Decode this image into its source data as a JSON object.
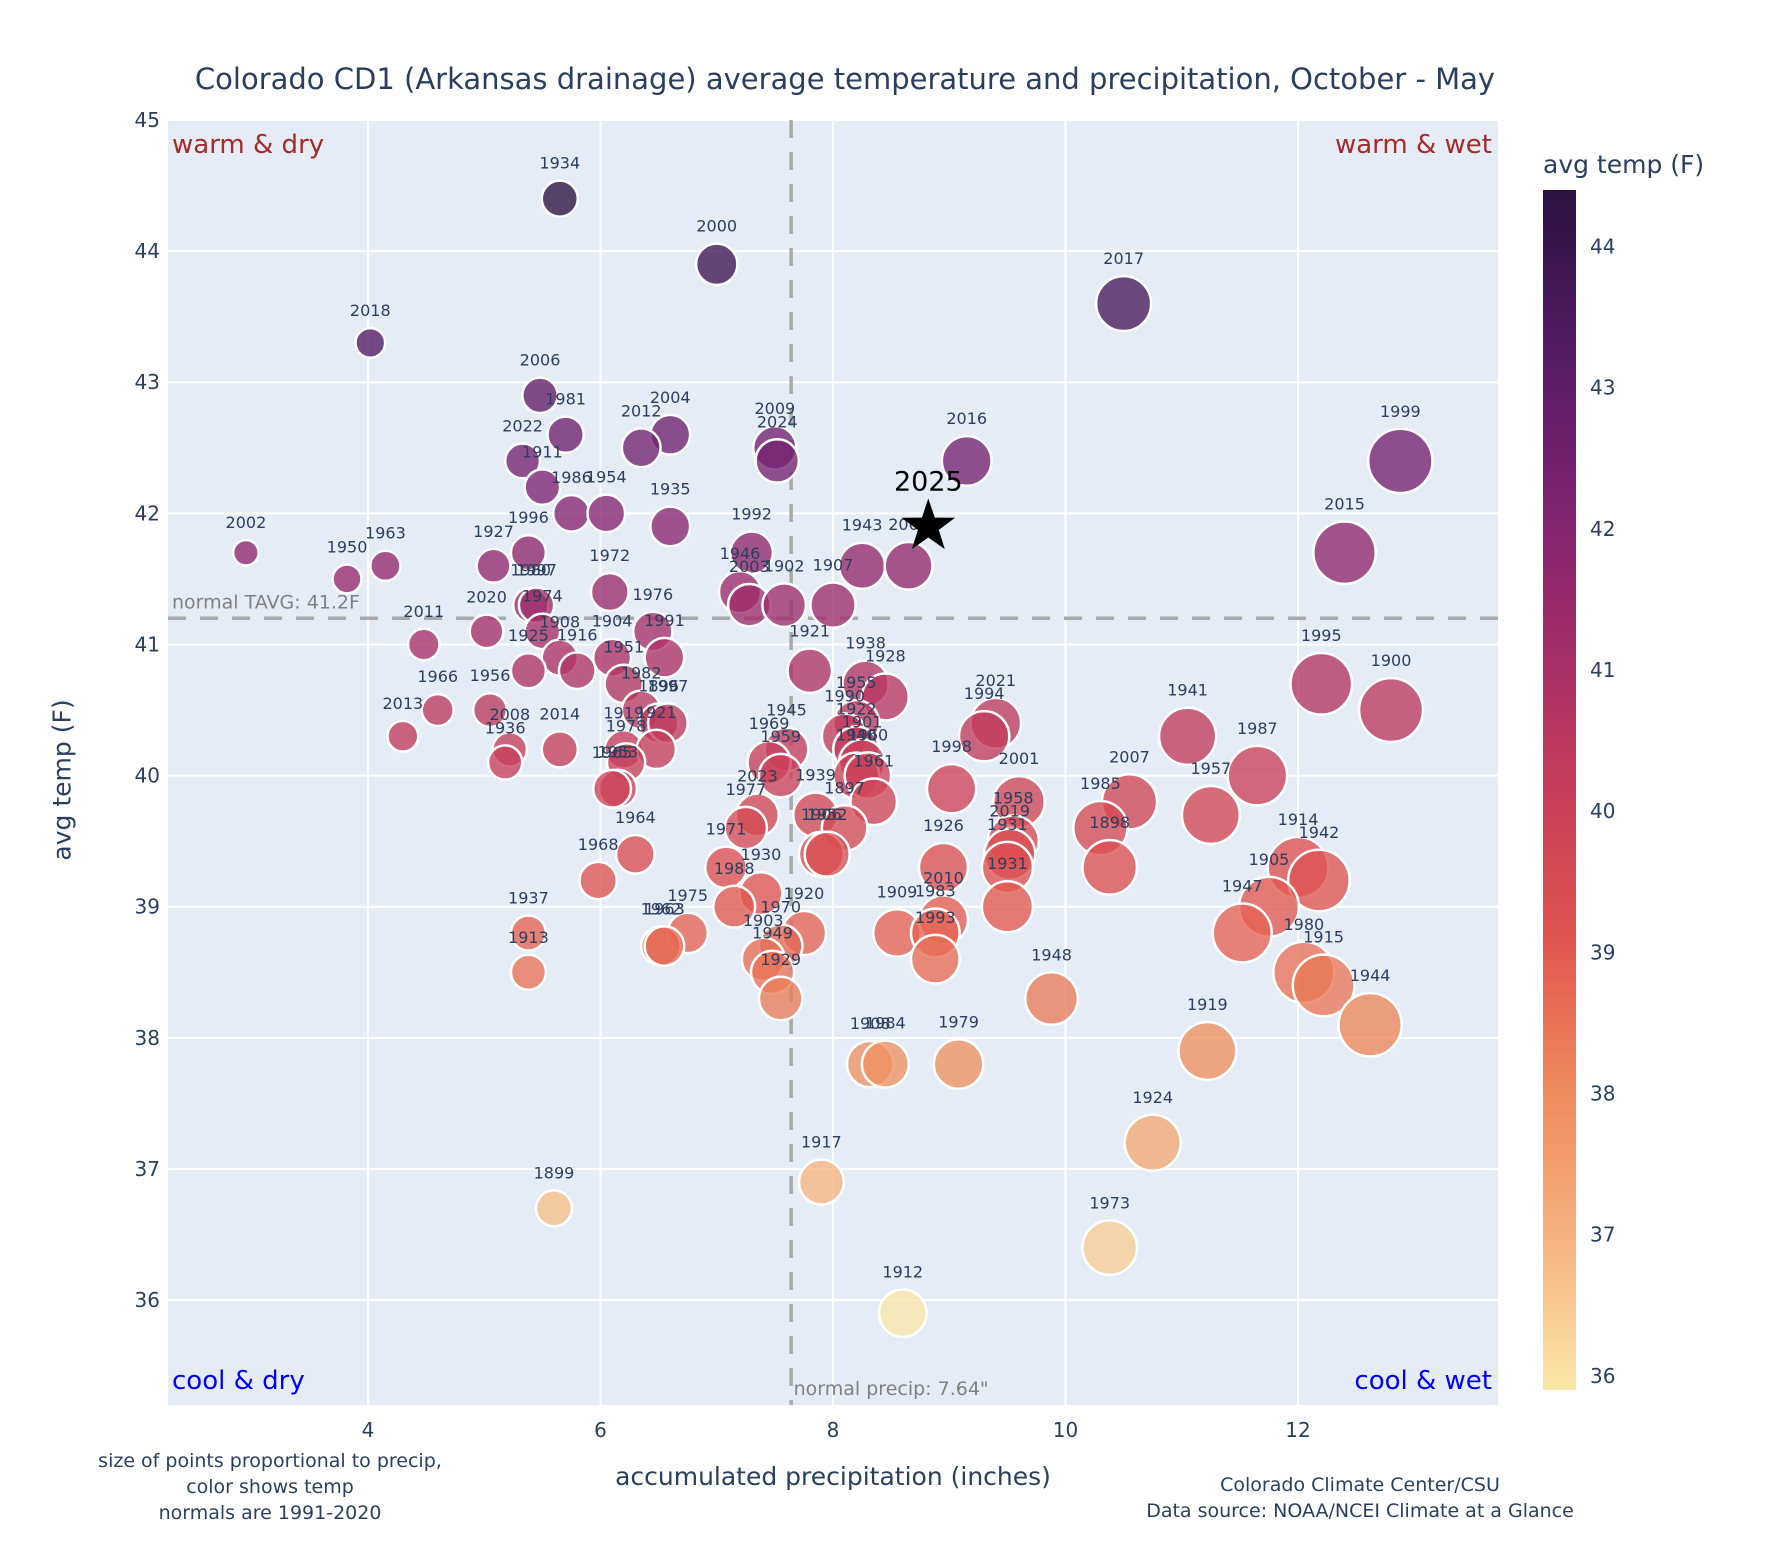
{
  "chart_data": {
    "type": "scatter",
    "title": "Colorado CD1 (Arkansas drainage) average temperature and precipitation, October - May",
    "xlabel": "accumulated precipitation (inches)",
    "ylabel": "avg temp (F)",
    "xlim": [
      2.28,
      13.72
    ],
    "ylim": [
      35.2,
      45.0
    ],
    "xticks": [
      4,
      6,
      8,
      10,
      12
    ],
    "yticks": [
      36,
      37,
      38,
      39,
      40,
      41,
      42,
      43,
      44,
      45
    ],
    "grid": true,
    "colorbar": {
      "title": "avg temp (F)",
      "range": [
        35.9,
        44.4
      ],
      "ticks": [
        36,
        37,
        38,
        39,
        40,
        41,
        42,
        43,
        44
      ],
      "colorscale": [
        "#fbe7a9",
        "#f6b27d",
        "#ef8a5b",
        "#e1554f",
        "#c73e5a",
        "#a22c6a",
        "#7b2271",
        "#511b62",
        "#2c1240"
      ]
    },
    "reference_lines": {
      "normal_temp": {
        "value": 41.2,
        "label": "normal TAVG: 41.2F"
      },
      "normal_precip": {
        "value": 7.64,
        "label": "normal precip: 7.64\""
      }
    },
    "quadrant_labels": {
      "top_left": {
        "text": "warm & dry",
        "color": "#a52a2a"
      },
      "top_right": {
        "text": "warm & wet",
        "color": "#a52a2a"
      },
      "bottom_left": {
        "text": "cool & dry",
        "color": "#0000ff"
      },
      "bottom_right": {
        "text": "cool & wet",
        "color": "#0000ff"
      }
    },
    "highlight": {
      "year": "2025",
      "precip": 8.82,
      "temp": 41.9,
      "marker": "star"
    },
    "points": [
      {
        "year": "1934",
        "precip": 5.65,
        "temp": 44.4
      },
      {
        "year": "2000",
        "precip": 7.0,
        "temp": 43.9
      },
      {
        "year": "2017",
        "precip": 10.5,
        "temp": 43.6
      },
      {
        "year": "2018",
        "precip": 4.02,
        "temp": 43.3
      },
      {
        "year": "2006",
        "precip": 5.48,
        "temp": 42.9
      },
      {
        "year": "1981",
        "precip": 5.7,
        "temp": 42.6
      },
      {
        "year": "2004",
        "precip": 6.6,
        "temp": 42.6
      },
      {
        "year": "2012",
        "precip": 6.35,
        "temp": 42.5
      },
      {
        "year": "2009",
        "precip": 7.5,
        "temp": 42.5
      },
      {
        "year": "2024",
        "precip": 7.52,
        "temp": 42.4
      },
      {
        "year": "2022",
        "precip": 5.33,
        "temp": 42.4
      },
      {
        "year": "1999",
        "precip": 12.88,
        "temp": 42.4
      },
      {
        "year": "2016",
        "precip": 9.15,
        "temp": 42.4
      },
      {
        "year": "1911",
        "precip": 5.5,
        "temp": 42.2
      },
      {
        "year": "1986",
        "precip": 5.75,
        "temp": 42.0
      },
      {
        "year": "1954",
        "precip": 6.05,
        "temp": 42.0
      },
      {
        "year": "1935",
        "precip": 6.6,
        "temp": 41.9
      },
      {
        "year": "2002",
        "precip": 2.95,
        "temp": 41.7
      },
      {
        "year": "1996",
        "precip": 5.38,
        "temp": 41.7
      },
      {
        "year": "1992",
        "precip": 7.3,
        "temp": 41.7
      },
      {
        "year": "2015",
        "precip": 12.4,
        "temp": 41.7
      },
      {
        "year": "1963",
        "precip": 4.15,
        "temp": 41.6
      },
      {
        "year": "1927",
        "precip": 5.08,
        "temp": 41.6
      },
      {
        "year": "1943",
        "precip": 8.25,
        "temp": 41.6
      },
      {
        "year": "2005",
        "precip": 8.65,
        "temp": 41.6
      },
      {
        "year": "1950",
        "precip": 3.82,
        "temp": 41.5
      },
      {
        "year": "1972",
        "precip": 6.08,
        "temp": 41.4
      },
      {
        "year": "1946",
        "precip": 7.2,
        "temp": 41.4
      },
      {
        "year": "1980s",
        "precip": 5.4,
        "temp": 41.3
      },
      {
        "year": "1997",
        "precip": 5.45,
        "temp": 41.3
      },
      {
        "year": "2003",
        "precip": 7.28,
        "temp": 41.3
      },
      {
        "year": "1902",
        "precip": 7.58,
        "temp": 41.3
      },
      {
        "year": "1907",
        "precip": 8.0,
        "temp": 41.3
      },
      {
        "year": "2020",
        "precip": 5.02,
        "temp": 41.1
      },
      {
        "year": "1974",
        "precip": 5.5,
        "temp": 41.1
      },
      {
        "year": "1976",
        "precip": 6.45,
        "temp": 41.1
      },
      {
        "year": "2011",
        "precip": 4.48,
        "temp": 41.0
      },
      {
        "year": "1908",
        "precip": 5.65,
        "temp": 40.9
      },
      {
        "year": "1904",
        "precip": 6.1,
        "temp": 40.9
      },
      {
        "year": "1991",
        "precip": 6.55,
        "temp": 40.9
      },
      {
        "year": "1925",
        "precip": 5.38,
        "temp": 40.8
      },
      {
        "year": "1916",
        "precip": 5.8,
        "temp": 40.8
      },
      {
        "year": "1921",
        "precip": 7.8,
        "temp": 40.8
      },
      {
        "year": "1951",
        "precip": 6.2,
        "temp": 40.7
      },
      {
        "year": "1938",
        "precip": 8.28,
        "temp": 40.7
      },
      {
        "year": "1995",
        "precip": 12.2,
        "temp": 40.7
      },
      {
        "year": "1928",
        "precip": 8.45,
        "temp": 40.6
      },
      {
        "year": "1982",
        "precip": 6.35,
        "temp": 40.5
      },
      {
        "year": "1966",
        "precip": 4.6,
        "temp": 40.5
      },
      {
        "year": "1956",
        "precip": 5.05,
        "temp": 40.5
      },
      {
        "year": "1900",
        "precip": 12.8,
        "temp": 40.5
      },
      {
        "year": "1896",
        "precip": 6.5,
        "temp": 40.4
      },
      {
        "year": "1955",
        "precip": 8.2,
        "temp": 40.4
      },
      {
        "year": "2021",
        "precip": 9.4,
        "temp": 40.4
      },
      {
        "year": "1990",
        "precip": 8.1,
        "temp": 40.3
      },
      {
        "year": "1994",
        "precip": 9.3,
        "temp": 40.3
      },
      {
        "year": "2013",
        "precip": 4.3,
        "temp": 40.3
      },
      {
        "year": "1941",
        "precip": 11.05,
        "temp": 40.3
      },
      {
        "year": "1997b",
        "precip": 6.58,
        "temp": 40.4
      },
      {
        "year": "2008",
        "precip": 5.22,
        "temp": 40.2
      },
      {
        "year": "2014",
        "precip": 5.65,
        "temp": 40.2
      },
      {
        "year": "1919",
        "precip": 6.2,
        "temp": 40.2
      },
      {
        "year": "1921b",
        "precip": 6.48,
        "temp": 40.2
      },
      {
        "year": "1922",
        "precip": 8.2,
        "temp": 40.2
      },
      {
        "year": "1945",
        "precip": 7.6,
        "temp": 40.2
      },
      {
        "year": "1936",
        "precip": 5.18,
        "temp": 40.1
      },
      {
        "year": "1978",
        "precip": 6.22,
        "temp": 40.1
      },
      {
        "year": "1969",
        "precip": 7.45,
        "temp": 40.1
      },
      {
        "year": "1959",
        "precip": 7.55,
        "temp": 40.0
      },
      {
        "year": "1901",
        "precip": 8.25,
        "temp": 40.1
      },
      {
        "year": "1940",
        "precip": 8.2,
        "temp": 40.0
      },
      {
        "year": "1960",
        "precip": 8.3,
        "temp": 40.0
      },
      {
        "year": "1987",
        "precip": 11.65,
        "temp": 40.0
      },
      {
        "year": "1953",
        "precip": 6.15,
        "temp": 39.9
      },
      {
        "year": "1965",
        "precip": 6.1,
        "temp": 39.9
      },
      {
        "year": "1998",
        "precip": 9.02,
        "temp": 39.9
      },
      {
        "year": "1961",
        "precip": 8.35,
        "temp": 39.8
      },
      {
        "year": "2001",
        "precip": 9.6,
        "temp": 39.8
      },
      {
        "year": "2007",
        "precip": 10.55,
        "temp": 39.8
      },
      {
        "year": "2023",
        "precip": 7.35,
        "temp": 39.7
      },
      {
        "year": "1939",
        "precip": 7.85,
        "temp": 39.7
      },
      {
        "year": "1957",
        "precip": 11.25,
        "temp": 39.7
      },
      {
        "year": "1897",
        "precip": 8.1,
        "temp": 39.6
      },
      {
        "year": "1977",
        "precip": 7.25,
        "temp": 39.6
      },
      {
        "year": "1985",
        "precip": 10.3,
        "temp": 39.6
      },
      {
        "year": "1906",
        "precip": 7.9,
        "temp": 39.4
      },
      {
        "year": "1964",
        "precip": 6.3,
        "temp": 39.4
      },
      {
        "year": "1958",
        "precip": 9.55,
        "temp": 39.5
      },
      {
        "year": "1952",
        "precip": 7.95,
        "temp": 39.4
      },
      {
        "year": "2019",
        "precip": 9.52,
        "temp": 39.4
      },
      {
        "year": "1931",
        "precip": 9.5,
        "temp": 39.3
      },
      {
        "year": "1971",
        "precip": 7.08,
        "temp": 39.3
      },
      {
        "year": "1926",
        "precip": 8.95,
        "temp": 39.3
      },
      {
        "year": "1898",
        "precip": 10.38,
        "temp": 39.3
      },
      {
        "year": "1914",
        "precip": 12.0,
        "temp": 39.3
      },
      {
        "year": "1942",
        "precip": 12.18,
        "temp": 39.2
      },
      {
        "year": "1968",
        "precip": 5.98,
        "temp": 39.2
      },
      {
        "year": "1930",
        "precip": 7.38,
        "temp": 39.1
      },
      {
        "year": "1988",
        "precip": 7.15,
        "temp": 39.0
      },
      {
        "year": "1931b",
        "precip": 9.5,
        "temp": 39.0
      },
      {
        "year": "1905",
        "precip": 11.75,
        "temp": 39.0
      },
      {
        "year": "2010",
        "precip": 8.95,
        "temp": 38.9
      },
      {
        "year": "1937",
        "precip": 5.38,
        "temp": 38.8
      },
      {
        "year": "1975",
        "precip": 6.75,
        "temp": 38.8
      },
      {
        "year": "1920",
        "precip": 7.75,
        "temp": 38.8
      },
      {
        "year": "1909",
        "precip": 8.55,
        "temp": 38.8
      },
      {
        "year": "1983",
        "precip": 8.88,
        "temp": 38.8
      },
      {
        "year": "1947",
        "precip": 11.52,
        "temp": 38.8
      },
      {
        "year": "1962",
        "precip": 6.52,
        "temp": 38.7
      },
      {
        "year": "1963b",
        "precip": 6.55,
        "temp": 38.7
      },
      {
        "year": "1970",
        "precip": 7.55,
        "temp": 38.7
      },
      {
        "year": "1903",
        "precip": 7.4,
        "temp": 38.6
      },
      {
        "year": "1993",
        "precip": 8.88,
        "temp": 38.6
      },
      {
        "year": "1949",
        "precip": 7.48,
        "temp": 38.5
      },
      {
        "year": "1913",
        "precip": 5.38,
        "temp": 38.5
      },
      {
        "year": "1980",
        "precip": 12.05,
        "temp": 38.5
      },
      {
        "year": "1915",
        "precip": 12.22,
        "temp": 38.4
      },
      {
        "year": "1929",
        "precip": 7.55,
        "temp": 38.3
      },
      {
        "year": "1948",
        "precip": 9.88,
        "temp": 38.3
      },
      {
        "year": "1944",
        "precip": 12.62,
        "temp": 38.1
      },
      {
        "year": "1919b",
        "precip": 11.22,
        "temp": 37.9
      },
      {
        "year": "1908b",
        "precip": 8.32,
        "temp": 37.8
      },
      {
        "year": "1984",
        "precip": 8.45,
        "temp": 37.8
      },
      {
        "year": "1979",
        "precip": 9.08,
        "temp": 37.8
      },
      {
        "year": "1924",
        "precip": 10.75,
        "temp": 37.2
      },
      {
        "year": "1917",
        "precip": 7.9,
        "temp": 36.9
      },
      {
        "year": "1899",
        "precip": 5.6,
        "temp": 36.7
      },
      {
        "year": "1973",
        "precip": 10.38,
        "temp": 36.4
      },
      {
        "year": "1912",
        "precip": 8.6,
        "temp": 35.9
      }
    ]
  },
  "footnotes": {
    "left": [
      "size of points proportional to precip,",
      "color shows temp",
      "normals are 1991-2020"
    ],
    "right": [
      "Colorado Climate Center/CSU",
      "Data source: NOAA/NCEI Climate at a Glance"
    ]
  }
}
